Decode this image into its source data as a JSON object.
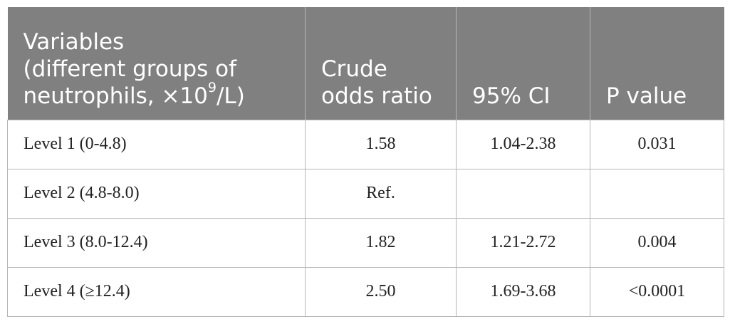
{
  "table": {
    "headers": {
      "variables_line1": "Variables",
      "variables_line2": "(different groups of",
      "variables_line3_pre": "neutrophils, ×10",
      "variables_line3_sup": "9",
      "variables_line3_post": "/L)",
      "odds_line1": "Crude",
      "odds_line2": "odds ratio",
      "ci": "95% CI",
      "p": "P value"
    },
    "rows": [
      {
        "label": "Level 1 (0-4.8)",
        "odds": "1.58",
        "ci": "1.04-2.38",
        "p": "0.031"
      },
      {
        "label": "Level 2 (4.8-8.0)",
        "odds": "Ref.",
        "ci": "",
        "p": ""
      },
      {
        "label": "Level 3 (8.0-12.4)",
        "odds": "1.82",
        "ci": "1.21-2.72",
        "p": "0.004"
      },
      {
        "label": "Level 4 (≥12.4)",
        "odds": "2.50",
        "ci": "1.69-3.68",
        "p": "<0.0001"
      }
    ]
  }
}
